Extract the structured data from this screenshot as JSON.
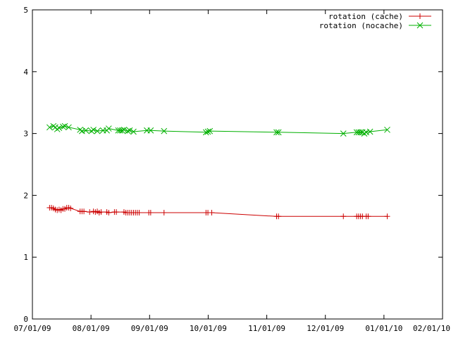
{
  "chart_data": {
    "type": "line",
    "title": "",
    "xlabel": "",
    "ylabel": "",
    "xlim": [
      "2009-07-01",
      "2010-02-01"
    ],
    "ylim": [
      0,
      5
    ],
    "grid": false,
    "legend_position": "top-right",
    "x_tick_labels": [
      "07/01/09",
      "08/01/09",
      "09/01/09",
      "10/01/09",
      "11/01/09",
      "12/01/09",
      "01/01/10",
      "02/01/10"
    ],
    "y_tick_labels": [
      "0",
      "1",
      "2",
      "3",
      "4",
      "5"
    ],
    "series": [
      {
        "name": "rotation (cache)",
        "color": "#cc0000",
        "marker": "plus",
        "points": [
          [
            "2009-07-10",
            1.8
          ],
          [
            "2009-07-11",
            1.8
          ],
          [
            "2009-07-12",
            1.79
          ],
          [
            "2009-07-13",
            1.77
          ],
          [
            "2009-07-14",
            1.76
          ],
          [
            "2009-07-15",
            1.77
          ],
          [
            "2009-07-16",
            1.76
          ],
          [
            "2009-07-17",
            1.78
          ],
          [
            "2009-07-18",
            1.78
          ],
          [
            "2009-07-19",
            1.8
          ],
          [
            "2009-07-20",
            1.8
          ],
          [
            "2009-07-21",
            1.79
          ],
          [
            "2009-07-26",
            1.74
          ],
          [
            "2009-07-27",
            1.74
          ],
          [
            "2009-07-28",
            1.74
          ],
          [
            "2009-07-31",
            1.73
          ],
          [
            "2009-08-02",
            1.74
          ],
          [
            "2009-08-03",
            1.73
          ],
          [
            "2009-08-04",
            1.74
          ],
          [
            "2009-08-05",
            1.72
          ],
          [
            "2009-08-06",
            1.73
          ],
          [
            "2009-08-09",
            1.73
          ],
          [
            "2009-08-10",
            1.72
          ],
          [
            "2009-08-13",
            1.73
          ],
          [
            "2009-08-14",
            1.73
          ],
          [
            "2009-08-18",
            1.73
          ],
          [
            "2009-08-19",
            1.72
          ],
          [
            "2009-08-20",
            1.72
          ],
          [
            "2009-08-21",
            1.72
          ],
          [
            "2009-08-22",
            1.72
          ],
          [
            "2009-08-23",
            1.72
          ],
          [
            "2009-08-24",
            1.72
          ],
          [
            "2009-08-25",
            1.72
          ],
          [
            "2009-08-26",
            1.72
          ],
          [
            "2009-08-31",
            1.72
          ],
          [
            "2009-09-01",
            1.72
          ],
          [
            "2009-09-08",
            1.72
          ],
          [
            "2009-09-30",
            1.72
          ],
          [
            "2009-10-01",
            1.72
          ],
          [
            "2009-10-03",
            1.72
          ],
          [
            "2009-11-06",
            1.66
          ],
          [
            "2009-11-07",
            1.66
          ],
          [
            "2009-12-11",
            1.66
          ],
          [
            "2009-12-18",
            1.66
          ],
          [
            "2009-12-19",
            1.66
          ],
          [
            "2009-12-20",
            1.66
          ],
          [
            "2009-12-21",
            1.66
          ],
          [
            "2009-12-23",
            1.66
          ],
          [
            "2009-12-24",
            1.66
          ],
          [
            "2010-01-03",
            1.66
          ]
        ]
      },
      {
        "name": "rotation (nocache)",
        "color": "#00b000",
        "marker": "cross",
        "points": [
          [
            "2009-07-10",
            3.1
          ],
          [
            "2009-07-12",
            3.12
          ],
          [
            "2009-07-13",
            3.1
          ],
          [
            "2009-07-14",
            3.07
          ],
          [
            "2009-07-15",
            3.09
          ],
          [
            "2009-07-17",
            3.11
          ],
          [
            "2009-07-18",
            3.12
          ],
          [
            "2009-07-20",
            3.1
          ],
          [
            "2009-07-26",
            3.06
          ],
          [
            "2009-07-27",
            3.04
          ],
          [
            "2009-07-29",
            3.05
          ],
          [
            "2009-08-01",
            3.04
          ],
          [
            "2009-08-02",
            3.06
          ],
          [
            "2009-08-04",
            3.04
          ],
          [
            "2009-08-07",
            3.05
          ],
          [
            "2009-08-09",
            3.05
          ],
          [
            "2009-08-10",
            3.08
          ],
          [
            "2009-08-15",
            3.05
          ],
          [
            "2009-08-16",
            3.05
          ],
          [
            "2009-08-17",
            3.05
          ],
          [
            "2009-08-18",
            3.06
          ],
          [
            "2009-08-20",
            3.04
          ],
          [
            "2009-08-21",
            3.05
          ],
          [
            "2009-08-23",
            3.03
          ],
          [
            "2009-08-30",
            3.05
          ],
          [
            "2009-09-01",
            3.05
          ],
          [
            "2009-09-08",
            3.04
          ],
          [
            "2009-09-30",
            3.02
          ],
          [
            "2009-10-01",
            3.03
          ],
          [
            "2009-10-02",
            3.04
          ],
          [
            "2009-11-06",
            3.02
          ],
          [
            "2009-11-07",
            3.02
          ],
          [
            "2009-12-11",
            3.0
          ],
          [
            "2009-12-18",
            3.02
          ],
          [
            "2009-12-19",
            3.02
          ],
          [
            "2009-12-20",
            3.02
          ],
          [
            "2009-12-21",
            3.02
          ],
          [
            "2009-12-22",
            3.0
          ],
          [
            "2009-12-23",
            3.02
          ],
          [
            "2009-12-25",
            3.03
          ],
          [
            "2010-01-03",
            3.06
          ]
        ]
      }
    ]
  }
}
